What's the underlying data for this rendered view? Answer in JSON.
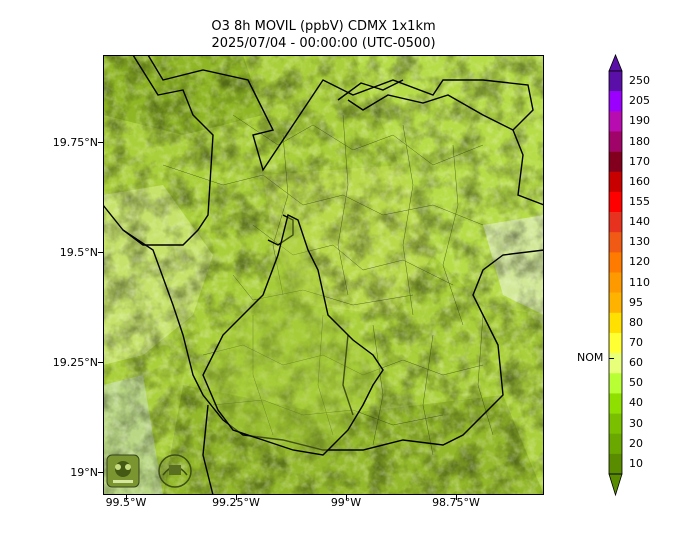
{
  "title": {
    "line1": "O3 8h MOVIL (ppbV) CDMX 1x1km",
    "line2": "2025/07/04 - 00:00:00 (UTC-0500)"
  },
  "axes": {
    "y_labels": [
      "19.75°N",
      "19.5°N",
      "19.25°N",
      "19°N"
    ],
    "x_labels": [
      "99.5°W",
      "99.25°W",
      "99°W",
      "98.75°W"
    ]
  },
  "colorbar": {
    "labels": [
      "250",
      "205",
      "190",
      "180",
      "170",
      "160",
      "155",
      "140",
      "130",
      "120",
      "110",
      "95",
      "80",
      "70",
      "60",
      "50",
      "40",
      "30",
      "20",
      "10"
    ],
    "colors": [
      "#5a0fa8",
      "#9b00ff",
      "#b80cb0",
      "#a10468",
      "#82001e",
      "#c90000",
      "#ff0000",
      "#e6321e",
      "#f05a14",
      "#ff7a00",
      "#ff9900",
      "#ffb300",
      "#ffe000",
      "#ffff33",
      "#e8ff7a",
      "#b8ff33",
      "#8fe000",
      "#7ac000",
      "#6aa800",
      "#5a8c00"
    ],
    "nom_label": "NOM",
    "nom_value": 70
  },
  "logos": {
    "left": "SEDEMA",
    "right": "CALIDAD DEL AIRE"
  }
}
